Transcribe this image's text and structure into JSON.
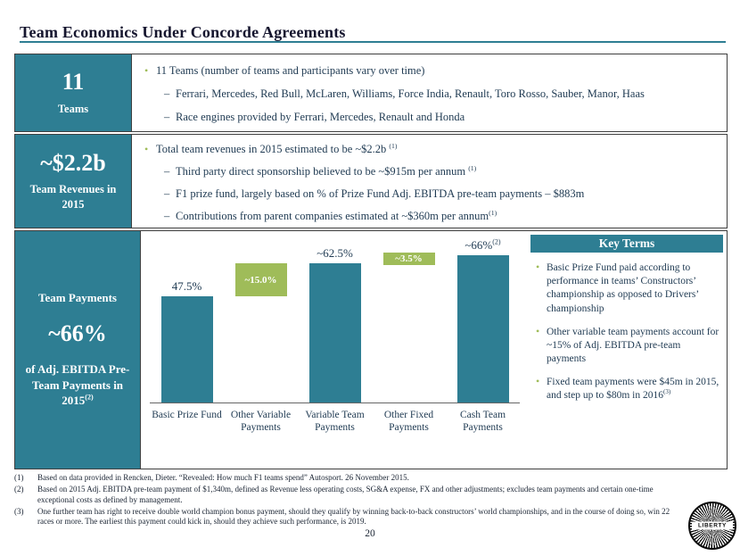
{
  "slide": {
    "title": "Team Economics Under Concorde Agreements",
    "page_number": "20",
    "logo_text": "LIBERTY"
  },
  "sections": [
    {
      "stat_value": "11",
      "stat_label": "Teams",
      "bullets": [
        {
          "level": 1,
          "text": "11 Teams (number of teams and participants vary over time)",
          "sup": ""
        },
        {
          "level": 2,
          "text": "Ferrari, Mercedes, Red Bull, McLaren, Williams, Force India, Renault, Toro Rosso, Sauber, Manor, Haas",
          "sup": ""
        },
        {
          "level": 2,
          "text": "Race engines provided by Ferrari, Mercedes, Renault and Honda",
          "sup": ""
        }
      ]
    },
    {
      "stat_value": "~$2.2b",
      "stat_label": "Team Revenues in 2015",
      "bullets": [
        {
          "level": 1,
          "text": "Total team revenues in 2015 estimated to be ~$2.2b ",
          "sup": "(1)"
        },
        {
          "level": 2,
          "text": "Third party direct sponsorship believed to be ~$915m per annum ",
          "sup": "(1)"
        },
        {
          "level": 2,
          "text": "F1 prize fund, largely based on % of Prize Fund Adj. EBITDA pre-team payments – $883m",
          "sup": ""
        },
        {
          "level": 2,
          "text": "Contributions from parent companies estimated at ~$360m per annum",
          "sup": "(1)"
        }
      ]
    },
    {
      "stat_top": "Team Payments",
      "stat_value": "~66%",
      "stat_bottom": "of Adj. EBITDA Pre-Team Payments in 2015",
      "stat_bottom_sup": "(2)"
    }
  ],
  "key_terms": {
    "title": "Key Terms",
    "bullets": [
      {
        "text": "Basic Prize Fund paid according to performance in teams’ Constructors’ championship as opposed to Drivers’ championship",
        "sup": ""
      },
      {
        "text": "Other variable team payments account for ~15% of Adj. EBITDA pre-team payments",
        "sup": ""
      },
      {
        "text": "Fixed team payments were $45m in 2015, and step up to $80m in 2016",
        "sup": "(3)"
      }
    ]
  },
  "chart_data": {
    "type": "bar",
    "subtype": "waterfall",
    "categories": [
      "Basic Prize Fund",
      "Other Variable Payments",
      "Variable Team Payments",
      "Other Fixed Payments",
      "Cash Team Payments"
    ],
    "values": [
      47.5,
      15.0,
      62.5,
      3.5,
      66
    ],
    "starts": [
      0,
      47.5,
      0,
      62.5,
      0
    ],
    "bar_types": [
      "total",
      "delta",
      "total",
      "delta",
      "total"
    ],
    "bar_labels": [
      "47.5%",
      "~15.0%",
      "~62.5%",
      "~3.5%",
      "~66%"
    ],
    "bar_label_sups": [
      "",
      "",
      "",
      "",
      "(2)"
    ],
    "ylim": [
      0,
      70
    ],
    "grid": false,
    "colors": {
      "total": "#2e7e93",
      "delta": "#9fbc59"
    }
  },
  "footnotes": [
    {
      "num": "(1)",
      "text": "Based on data provided in Rencken, Dieter. “Revealed: How much F1 teams spend” Autosport. 26 November 2015."
    },
    {
      "num": "(2)",
      "text": "Based on 2015 Adj. EBITDA pre-team payment of $1,340m, defined as Revenue less operating costs, SG&A expense, FX and other adjustments; excludes team payments and certain one-time exceptional costs as defined by management."
    },
    {
      "num": "(3)",
      "text": "One further team has right to receive double world champion bonus payment, should they qualify by winning back-to-back constructors’ world championships, and in the course of doing so, win 22 races or more. The earliest this payment could kick in, should they achieve such performance, is 2019."
    }
  ]
}
